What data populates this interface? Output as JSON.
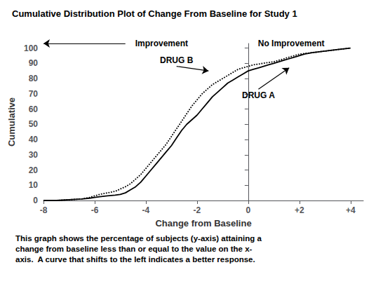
{
  "chart_data": {
    "type": "line",
    "title": "Cumulative Distribution Plot of Change From Baseline for Study 1",
    "xlabel": "Change from Baseline",
    "ylabel": "Cumulative",
    "caption": "This graph shows the percentage of subjects (y-axis) attaining a\nchange from baseline less than or equal to the value on the x-\naxis.  A curve that shifts to the left indicates a better response.",
    "xlim": [
      -8,
      4.5
    ],
    "ylim": [
      0,
      103
    ],
    "xticks": [
      -8,
      -6,
      -4,
      -2,
      0,
      {
        "value": 2,
        "label": "+2"
      },
      {
        "value": 4,
        "label": "+4"
      }
    ],
    "yticks": [
      0,
      10,
      20,
      30,
      40,
      50,
      60,
      70,
      80,
      90,
      100
    ],
    "grid": false,
    "series": [
      {
        "color": "#000000",
        "line_style": "solid",
        "x": [
          -8.0,
          -7.5,
          -7.0,
          -6.5,
          -6.2,
          -6.0,
          -5.8,
          -5.5,
          -5.2,
          -5.0,
          -4.8,
          -4.6,
          -4.4,
          -4.2,
          -4.0,
          -3.8,
          -3.6,
          -3.4,
          -3.2,
          -3.0,
          -2.8,
          -2.6,
          -2.4,
          -2.2,
          -2.0,
          -1.8,
          -1.6,
          -1.4,
          -1.2,
          -1.0,
          -0.8,
          -0.6,
          -0.4,
          -0.2,
          0.0,
          0.2,
          0.4,
          0.6,
          0.8,
          1.0,
          1.2,
          1.4,
          1.6,
          1.8,
          2.0,
          2.2,
          2.5,
          3.0,
          3.5,
          4.0
        ],
        "values": [
          0,
          0,
          0.5,
          1,
          1.5,
          2,
          2.5,
          3,
          3.5,
          4,
          5,
          7,
          9,
          12,
          16,
          20,
          24,
          28,
          32,
          36,
          41,
          46,
          50,
          53,
          56,
          60,
          64,
          68,
          71,
          74,
          77,
          79,
          81,
          83,
          85,
          86,
          87,
          88,
          89,
          90,
          91,
          92,
          93,
          94,
          95,
          96,
          97,
          98,
          99,
          100
        ]
      },
      {
        "color": "#000000",
        "line_style": "dotted",
        "x": [
          -8.0,
          -7.5,
          -7.0,
          -6.5,
          -6.2,
          -6.0,
          -5.8,
          -5.5,
          -5.2,
          -5.0,
          -4.8,
          -4.6,
          -4.4,
          -4.2,
          -4.0,
          -3.8,
          -3.6,
          -3.4,
          -3.2,
          -3.0,
          -2.8,
          -2.6,
          -2.4,
          -2.2,
          -2.0,
          -1.8,
          -1.6,
          -1.4,
          -1.2,
          -1.0,
          -0.8,
          -0.6,
          -0.4,
          -0.2,
          0.0,
          0.2,
          0.4,
          0.6,
          0.8,
          1.0,
          1.2,
          1.4,
          1.6,
          1.8,
          2.0,
          2.5,
          3.0,
          3.5,
          4.0
        ],
        "values": [
          0,
          0,
          0.5,
          1,
          2,
          3,
          4,
          5,
          6,
          7.5,
          9,
          11,
          14,
          17,
          21,
          25,
          29,
          33,
          37,
          42,
          47,
          52,
          57,
          62,
          66,
          70,
          73,
          76,
          78,
          80,
          82,
          84,
          86,
          87,
          88,
          89,
          89.5,
          90,
          90.5,
          91,
          92,
          93,
          94,
          95,
          96,
          97,
          98,
          99,
          100
        ]
      }
    ],
    "annotations": [
      {
        "text": "DRUG B",
        "x": -2.8,
        "y": 88,
        "arrow_to": [
          -1.55,
          85
        ]
      },
      {
        "text": "DRUG A",
        "x": 0.4,
        "y": 73,
        "arrow_to": [
          1.6,
          87
        ]
      },
      {
        "text": "Improvement",
        "x": -4.5,
        "y": 103,
        "arrow_from": [
          -4.8,
          103
        ],
        "arrow_to": [
          -8,
          103
        ]
      },
      {
        "text": "No Improvement",
        "x": 0.3,
        "y": 103
      }
    ]
  }
}
